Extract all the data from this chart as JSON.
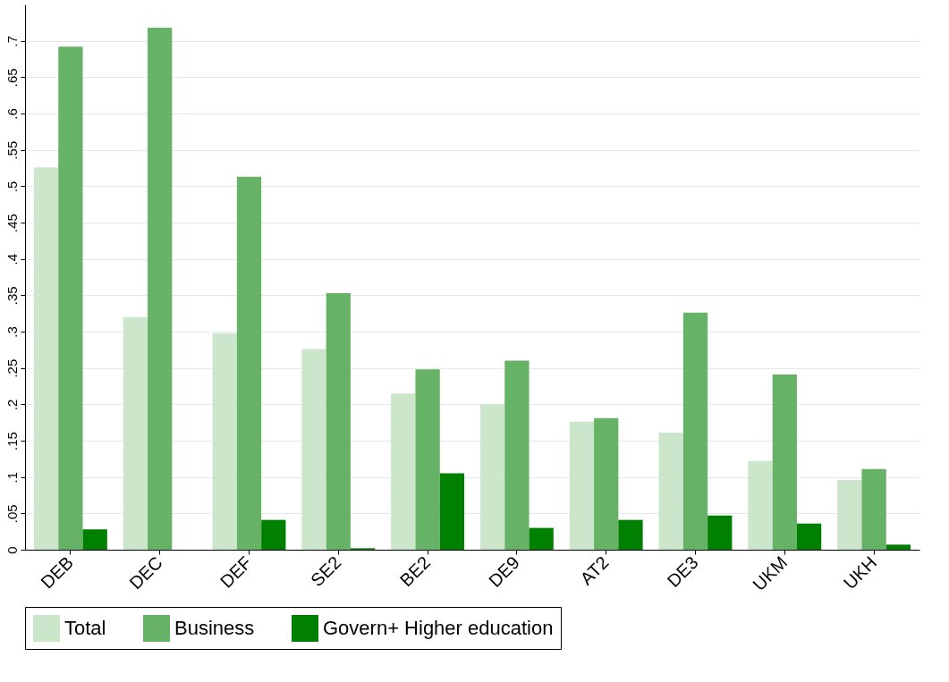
{
  "chart_data": {
    "type": "bar",
    "categories": [
      "DEB",
      "DEC",
      "DEF",
      "SE2",
      "BE2",
      "DE9",
      "AT2",
      "DE3",
      "UKM",
      "UKH"
    ],
    "series": [
      {
        "name": "Total",
        "color": "#cce6cc",
        "values": [
          0.526,
          0.32,
          0.298,
          0.276,
          0.215,
          0.2,
          0.176,
          0.161,
          0.122,
          0.096
        ]
      },
      {
        "name": "Business",
        "color": "#66b266",
        "values": [
          0.692,
          0.718,
          0.513,
          0.353,
          0.248,
          0.26,
          0.181,
          0.326,
          0.241,
          0.111
        ]
      },
      {
        "name": "Govern+ Higher education",
        "color": "#008000",
        "values": [
          0.028,
          0,
          0.041,
          0.002,
          0.105,
          0.03,
          0.041,
          0.047,
          0.036,
          0.007
        ]
      }
    ],
    "ylim": [
      0,
      0.75
    ],
    "yticks": [
      0,
      {
        "value": 0.05,
        "label": ".05"
      },
      {
        "value": 0.1,
        "label": ".1"
      },
      {
        "value": 0.15,
        "label": ".15"
      },
      {
        "value": 0.2,
        "label": ".2"
      },
      {
        "value": 0.25,
        "label": ".25"
      },
      {
        "value": 0.3,
        "label": ".3"
      },
      {
        "value": 0.35,
        "label": ".35"
      },
      {
        "value": 0.4,
        "label": ".4"
      },
      {
        "value": 0.45,
        "label": ".45"
      },
      {
        "value": 0.5,
        "label": ".5"
      },
      {
        "value": 0.55,
        "label": ".55"
      },
      {
        "value": 0.6,
        "label": ".6"
      },
      {
        "value": 0.65,
        "label": ".65"
      },
      {
        "value": 0.7,
        "label": ".7"
      }
    ],
    "grid": "y",
    "legend": "bottom"
  }
}
